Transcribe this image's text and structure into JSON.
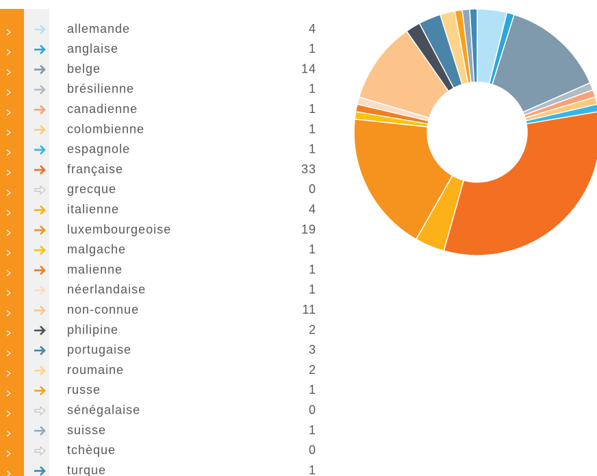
{
  "chart_data": {
    "type": "pie",
    "donut": true,
    "categories": [
      "allemande",
      "anglaise",
      "belge",
      "brésilienne",
      "canadienne",
      "colombienne",
      "espagnole",
      "française",
      "grecque",
      "italienne",
      "luxembourgeoise",
      "malgache",
      "malienne",
      "néerlandaise",
      "non-connue",
      "philipine",
      "portugaise",
      "roumaine",
      "russe",
      "sénégalaise",
      "suisse",
      "tchèque",
      "turque"
    ],
    "values": [
      4,
      1,
      14,
      1,
      1,
      1,
      1,
      33,
      0,
      4,
      19,
      1,
      1,
      1,
      11,
      2,
      3,
      2,
      1,
      0,
      1,
      0,
      1
    ],
    "colors": [
      "#b3e2f6",
      "#2aa8d8",
      "#7f9aad",
      "#b0bcc6",
      "#f7a278",
      "#fcc97a",
      "#35b5ea",
      "#f36f21",
      "#b9bcc4",
      "#fbb117",
      "#f6921e",
      "#fdc10e",
      "#f07e22",
      "#fddcc4",
      "#fcc48a",
      "#47505a",
      "#4a84a8",
      "#fed48a",
      "#f8a21c",
      "#b9bcc4",
      "#8fa8bd",
      "#b9bcc4",
      "#3f8bb5"
    ]
  }
}
